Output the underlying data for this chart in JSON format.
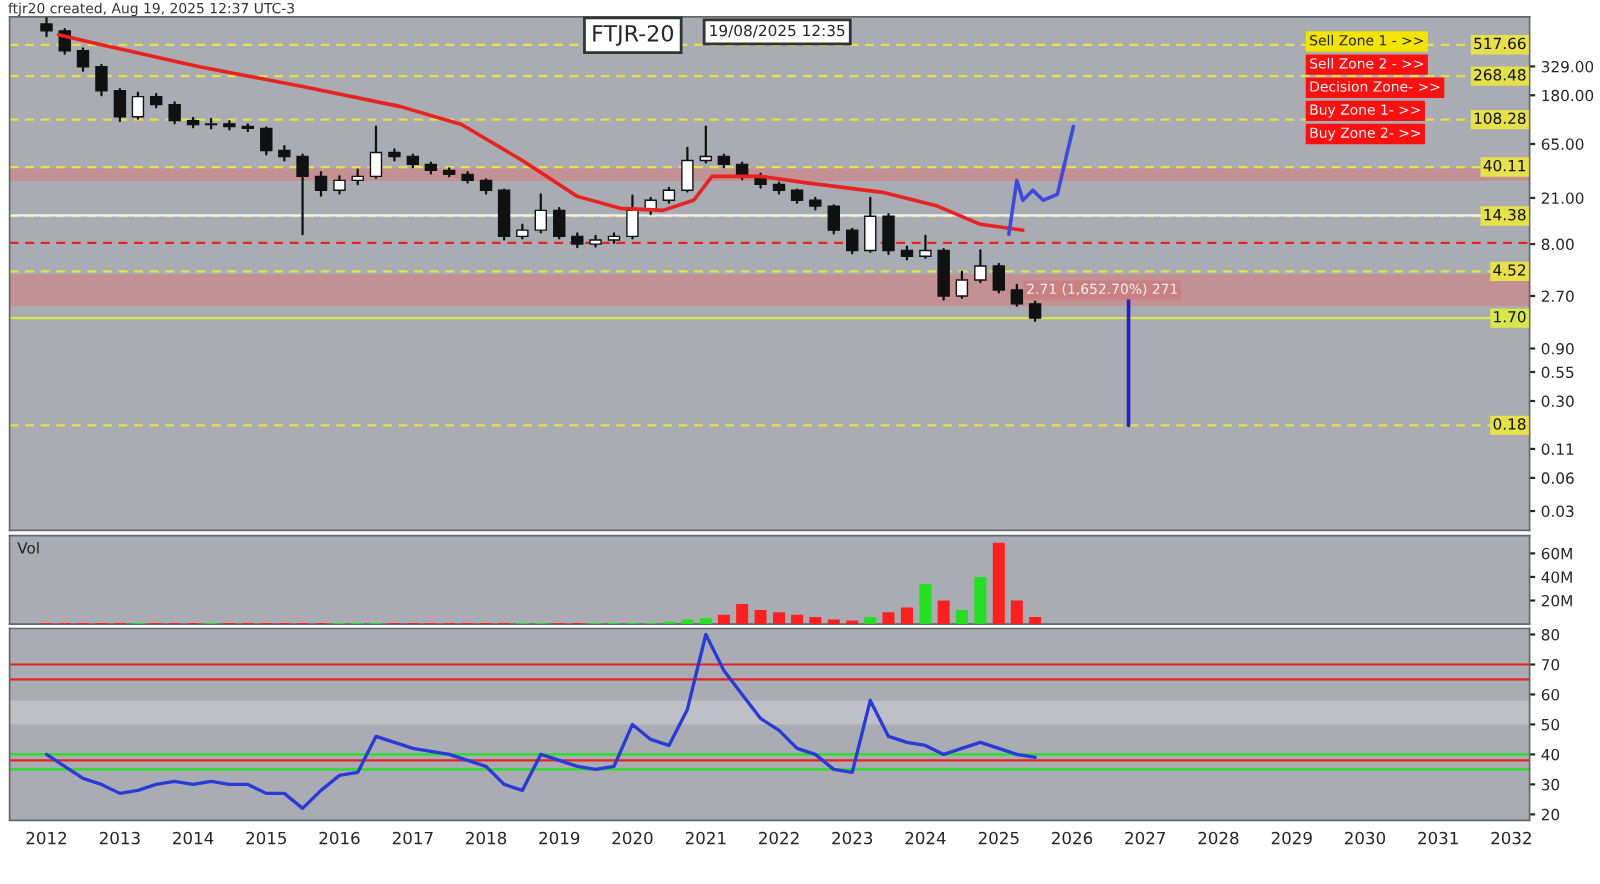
{
  "chart_data": [
    {
      "type": "candlestick",
      "x": [
        "2012-01",
        "2012-04",
        "2012-07",
        "2012-10",
        "2013-01",
        "2013-04",
        "2013-07",
        "2013-10",
        "2014-01",
        "2014-04",
        "2014-07",
        "2014-10",
        "2015-01",
        "2015-04",
        "2015-07",
        "2015-10",
        "2016-01",
        "2016-04",
        "2016-07",
        "2016-10",
        "2017-01",
        "2017-04",
        "2017-07",
        "2017-10",
        "2018-01",
        "2018-04",
        "2018-07",
        "2018-10",
        "2019-01",
        "2019-04",
        "2019-07",
        "2019-10",
        "2020-01",
        "2020-04",
        "2020-07",
        "2020-10",
        "2021-01",
        "2021-04",
        "2021-07",
        "2021-10",
        "2022-01",
        "2022-04",
        "2022-07",
        "2022-10",
        "2023-01",
        "2023-04",
        "2023-07",
        "2023-10",
        "2024-01",
        "2024-04",
        "2024-07",
        "2024-10",
        "2025-01",
        "2025-04",
        "2025-07"
      ],
      "ohlc": [
        [
          800,
          900,
          620,
          693
        ],
        [
          693,
          720,
          430,
          457
        ],
        [
          457,
          480,
          300,
          327
        ],
        [
          327,
          340,
          180,
          198
        ],
        [
          198,
          205,
          105,
          115
        ],
        [
          115,
          190,
          110,
          175
        ],
        [
          175,
          185,
          140,
          148
        ],
        [
          148,
          155,
          100,
          106
        ],
        [
          106,
          112,
          92,
          97.6
        ],
        [
          97.6,
          110,
          90,
          99
        ],
        [
          99,
          105,
          88,
          93.6
        ],
        [
          93.6,
          98,
          85,
          90
        ],
        [
          90,
          92,
          52,
          56.7
        ],
        [
          56.7,
          62,
          46,
          50
        ],
        [
          50,
          52,
          9.8,
          33
        ],
        [
          33,
          36,
          22,
          24.7
        ],
        [
          24.7,
          33,
          23,
          30.3
        ],
        [
          30.3,
          38,
          28,
          33
        ],
        [
          33,
          93.6,
          32,
          54.4
        ],
        [
          54.4,
          58,
          46,
          50
        ],
        [
          50,
          52,
          40,
          42.4
        ],
        [
          42.4,
          44,
          35,
          37.4
        ],
        [
          37.4,
          39,
          33,
          34.4
        ],
        [
          34.4,
          36,
          29,
          30.3
        ],
        [
          30.3,
          31,
          23,
          24.7
        ],
        [
          24.7,
          25,
          8.8,
          9.4
        ],
        [
          9.4,
          12,
          9,
          10.7
        ],
        [
          10.7,
          22.6,
          10.2,
          16.2
        ],
        [
          16.2,
          17,
          9,
          9.4
        ],
        [
          9.4,
          10,
          7.5,
          8
        ],
        [
          8,
          9.5,
          7.6,
          8.7
        ],
        [
          8.7,
          10,
          8.2,
          9.4
        ],
        [
          9.4,
          22,
          9,
          16.2
        ],
        [
          16.2,
          21,
          15,
          20
        ],
        [
          20,
          26,
          19,
          24.7
        ],
        [
          24.7,
          60,
          24,
          46
        ],
        [
          46,
          93.6,
          44,
          50
        ],
        [
          50,
          52,
          40,
          42.4
        ],
        [
          42.4,
          44,
          31,
          33
        ],
        [
          33,
          35,
          26,
          27.9
        ],
        [
          27.9,
          29,
          23,
          24.7
        ],
        [
          24.7,
          25,
          19,
          20
        ],
        [
          20,
          21,
          16.5,
          17.7
        ],
        [
          17.7,
          18,
          10,
          10.7
        ],
        [
          10.7,
          11,
          6.6,
          7
        ],
        [
          7,
          21,
          6.8,
          14.3
        ],
        [
          14.3,
          15,
          6.5,
          7
        ],
        [
          7,
          7.6,
          5.8,
          6.2
        ],
        [
          6.2,
          9.5,
          6,
          7
        ],
        [
          7,
          7.2,
          2.5,
          2.7
        ],
        [
          2.7,
          4.5,
          2.6,
          3.77
        ],
        [
          3.77,
          7,
          3.6,
          5.05
        ],
        [
          5.05,
          5.3,
          2.9,
          3.06
        ],
        [
          3.06,
          3.4,
          2.2,
          2.29
        ],
        [
          2.29,
          2.4,
          1.6,
          1.7
        ]
      ],
      "colors": [
        "#111111",
        "#111111",
        "#111111",
        "#111111",
        "#111111",
        "#ffffff",
        "#111111",
        "#111111",
        "#111111",
        "#ffffff",
        "#111111",
        "#111111",
        "#111111",
        "#111111",
        "#111111",
        "#111111",
        "#ffffff",
        "#ffffff",
        "#ffffff",
        "#111111",
        "#111111",
        "#111111",
        "#111111",
        "#111111",
        "#111111",
        "#111111",
        "#ffffff",
        "#ffffff",
        "#111111",
        "#111111",
        "#ffffff",
        "#ffffff",
        "#ffffff",
        "#ffffff",
        "#ffffff",
        "#ffffff",
        "#ffffff",
        "#111111",
        "#111111",
        "#111111",
        "#111111",
        "#111111",
        "#111111",
        "#111111",
        "#111111",
        "#ffffff",
        "#111111",
        "#111111",
        "#ffffff",
        "#111111",
        "#ffffff",
        "#ffffff",
        "#111111",
        "#111111",
        "#111111"
      ],
      "series": [
        {
          "type": "line",
          "color": "#e8231f",
          "x": [
            "2012-03",
            "2012-10",
            "2014-02",
            "2015-07",
            "2016-11",
            "2017-09",
            "2018-07",
            "2019-04",
            "2019-11",
            "2020-06",
            "2020-11",
            "2021-02",
            "2021-10",
            "2022-05",
            "2023-06",
            "2024-03",
            "2024-10",
            "2025-05"
          ],
          "values": [
            638,
            517,
            327,
            216,
            142,
            97.6,
            46,
            21.7,
            16.9,
            16.2,
            20,
            33,
            33,
            29.1,
            23.6,
            17.7,
            12.1,
            10.7
          ]
        },
        {
          "type": "line",
          "color": "#3f48e0",
          "x": [
            "2025-02-20",
            "2025-04-01",
            "2025-05-01",
            "2025-06-20",
            "2025-08-10",
            "2025-10-20",
            "2026-01-08"
          ],
          "values": [
            9.84,
            30.3,
            20,
            24.7,
            20,
            22.6,
            93.6
          ]
        },
        {
          "type": "line",
          "color": "#2020c8",
          "x": [
            "2026-10-10",
            "2026-10-10"
          ],
          "values": [
            2.7,
            0.18
          ]
        }
      ],
      "log": "y",
      "xlim": [
        "2011-07",
        "2032-04"
      ],
      "ylim": [
        0.02,
        930
      ],
      "yticks": [
        {
          "value": 329,
          "label": "329.00"
        },
        {
          "value": 180,
          "label": "180.00"
        },
        {
          "value": 65,
          "label": "65.00"
        },
        {
          "value": 21,
          "label": "21.00"
        },
        {
          "value": 8,
          "label": "8.00"
        },
        {
          "value": 2.7,
          "label": "2.70"
        },
        {
          "value": 0.9,
          "label": "0.90"
        },
        {
          "value": 0.55,
          "label": "0.55"
        },
        {
          "value": 0.3,
          "label": "0.30"
        },
        {
          "value": 0.11,
          "label": "0.11"
        },
        {
          "value": 0.06,
          "label": "0.06"
        },
        {
          "value": 0.03,
          "label": "0.03"
        }
      ],
      "tick_labels": "y",
      "ref_lines": [
        {
          "axis": "y",
          "value": 517.66,
          "label": "517.66",
          "color": "#e6e04a",
          "line_style": "dashed"
        },
        {
          "axis": "y",
          "value": 268.48,
          "label": "268.48",
          "color": "#e6e04a",
          "line_style": "dashed"
        },
        {
          "axis": "y",
          "value": 108.28,
          "label": "108.28",
          "color": "#e6e04a",
          "line_style": "dashed"
        },
        {
          "axis": "y",
          "value": 40.11,
          "label": "40.11",
          "color": "#e6e04a",
          "line_style": "dashed"
        },
        {
          "axis": "y",
          "value": 14.38,
          "label": "14.38",
          "color": "#e6e04a",
          "line_style": "dashed"
        },
        {
          "axis": "y",
          "value": 4.52,
          "label": "4.52",
          "color": "#e6e04a",
          "line_style": "dashed"
        },
        {
          "axis": "y",
          "value": 0.18,
          "label": "0.18",
          "color": "#e6e04a",
          "line_style": "dashed"
        },
        {
          "axis": "y",
          "value": 14.6,
          "color": "#f2f2f2",
          "line_style": "solid"
        },
        {
          "axis": "y",
          "value": 8.2,
          "color": "#e8231f",
          "line_style": "dashed"
        },
        {
          "axis": "y",
          "value": 1.7,
          "label": "1.70",
          "color": "#d8e84a",
          "line_style": "solid"
        }
      ],
      "bands": [
        {
          "axis": "y",
          "from": 30,
          "to": 39,
          "color": "#d97a7a"
        },
        {
          "axis": "y",
          "from": 2.19,
          "to": 4.27,
          "color": "#d97a7a",
          "label": "2.71 (1,652.70%) 271"
        }
      ],
      "annotations": [
        "ftjr20 created, Aug 19, 2025 12:37 UTC-3",
        "FTJR-20",
        "19/08/2025 12:35",
        "Sell Zone 1 - >>",
        "Sell Zone 2 - >>",
        "Decision Zone- >>",
        "Buy Zone 1- >>",
        "Buy Zone 2- >>"
      ]
    },
    {
      "type": "bar",
      "title": "Vol",
      "x": [
        "2012-01",
        "2012-04",
        "2012-07",
        "2012-10",
        "2013-01",
        "2013-04",
        "2013-07",
        "2013-10",
        "2014-01",
        "2014-04",
        "2014-07",
        "2014-10",
        "2015-01",
        "2015-04",
        "2015-07",
        "2015-10",
        "2016-01",
        "2016-04",
        "2016-07",
        "2016-10",
        "2017-01",
        "2017-04",
        "2017-07",
        "2017-10",
        "2018-01",
        "2018-04",
        "2018-07",
        "2018-10",
        "2019-01",
        "2019-04",
        "2019-07",
        "2019-10",
        "2020-01",
        "2020-04",
        "2020-07",
        "2020-10",
        "2021-01",
        "2021-04",
        "2021-07",
        "2021-10",
        "2022-01",
        "2022-04",
        "2022-07",
        "2022-10",
        "2023-01",
        "2023-04",
        "2023-07",
        "2023-10",
        "2024-01",
        "2024-04",
        "2024-07",
        "2024-10",
        "2025-01",
        "2025-04",
        "2025-07"
      ],
      "values": [
        1,
        1,
        1,
        1,
        1,
        1,
        1,
        1,
        1,
        1,
        1,
        1,
        1,
        1,
        1,
        1,
        1,
        1,
        1,
        1,
        1,
        1,
        1,
        1,
        1,
        1,
        1,
        1,
        1,
        1,
        1,
        1,
        1,
        1,
        2,
        4,
        5,
        8,
        17,
        12,
        10,
        8,
        6,
        4,
        3,
        6,
        10,
        14,
        34,
        20,
        12,
        40,
        69,
        20,
        6
      ],
      "colors": [
        "#ff1f1f",
        "#ff1f1f",
        "#ff1f1f",
        "#ff1f1f",
        "#ff1f1f",
        "#22e022",
        "#ff1f1f",
        "#ff1f1f",
        "#ff1f1f",
        "#22e022",
        "#ff1f1f",
        "#ff1f1f",
        "#ff1f1f",
        "#ff1f1f",
        "#ff1f1f",
        "#ff1f1f",
        "#22e022",
        "#22e022",
        "#22e022",
        "#ff1f1f",
        "#ff1f1f",
        "#ff1f1f",
        "#ff1f1f",
        "#ff1f1f",
        "#ff1f1f",
        "#ff1f1f",
        "#22e022",
        "#22e022",
        "#ff1f1f",
        "#ff1f1f",
        "#22e022",
        "#22e022",
        "#22e022",
        "#22e022",
        "#22e022",
        "#22e022",
        "#22e022",
        "#ff1f1f",
        "#ff1f1f",
        "#ff1f1f",
        "#ff1f1f",
        "#ff1f1f",
        "#ff1f1f",
        "#ff1f1f",
        "#ff1f1f",
        "#22e022",
        "#ff1f1f",
        "#ff1f1f",
        "#22e022",
        "#ff1f1f",
        "#22e022",
        "#22e022",
        "#ff1f1f",
        "#ff1f1f",
        "#ff1f1f"
      ],
      "xlim": [
        "2011-07",
        "2032-04"
      ],
      "ylim": [
        0,
        75
      ],
      "yticks": [
        {
          "value": 20,
          "label": "20M"
        },
        {
          "value": 40,
          "label": "40M"
        },
        {
          "value": 60,
          "label": "60M"
        }
      ],
      "tick_labels": "y"
    },
    {
      "type": "line",
      "x": [
        "2012-01",
        "2012-04",
        "2012-07",
        "2012-10",
        "2013-01",
        "2013-04",
        "2013-07",
        "2013-10",
        "2014-01",
        "2014-04",
        "2014-07",
        "2014-10",
        "2015-01",
        "2015-04",
        "2015-07",
        "2015-10",
        "2016-01",
        "2016-04",
        "2016-07",
        "2016-10",
        "2017-01",
        "2017-04",
        "2017-07",
        "2017-10",
        "2018-01",
        "2018-04",
        "2018-07",
        "2018-10",
        "2019-01",
        "2019-04",
        "2019-07",
        "2019-10",
        "2020-01",
        "2020-04",
        "2020-07",
        "2020-10",
        "2021-01",
        "2021-04",
        "2021-07",
        "2021-10",
        "2022-01",
        "2022-04",
        "2022-07",
        "2022-10",
        "2023-01",
        "2023-04",
        "2023-07",
        "2023-10",
        "2024-01",
        "2024-04",
        "2024-07",
        "2024-10",
        "2025-01",
        "2025-04",
        "2025-07"
      ],
      "series": [
        {
          "color": "#2a3ad8",
          "values": [
            40,
            36,
            32,
            30,
            27,
            28,
            30,
            31,
            30,
            31,
            30,
            30,
            27,
            27,
            22,
            28,
            33,
            34,
            46,
            44,
            42,
            41,
            40,
            38,
            36,
            30,
            28,
            40,
            38,
            36,
            35,
            36,
            50,
            45,
            43,
            55,
            80,
            68,
            60,
            52,
            48,
            42,
            40,
            35,
            34,
            58,
            46,
            44,
            43,
            40,
            42,
            44,
            42,
            40,
            39
          ]
        }
      ],
      "xlim": [
        "2011-07",
        "2032-04"
      ],
      "xticks": [
        {
          "value": "2012-01-01",
          "label": "2012"
        },
        {
          "value": "2013-01-01",
          "label": "2013"
        },
        {
          "value": "2014-01-01",
          "label": "2014"
        },
        {
          "value": "2015-01-01",
          "label": "2015"
        },
        {
          "value": "2016-01-01",
          "label": "2016"
        },
        {
          "value": "2017-01-01",
          "label": "2017"
        },
        {
          "value": "2018-01-01",
          "label": "2018"
        },
        {
          "value": "2019-01-01",
          "label": "2019"
        },
        {
          "value": "2020-01-01",
          "label": "2020"
        },
        {
          "value": "2021-01-01",
          "label": "2021"
        },
        {
          "value": "2022-01-01",
          "label": "2022"
        },
        {
          "value": "2023-01-01",
          "label": "2023"
        },
        {
          "value": "2024-01-01",
          "label": "2024"
        },
        {
          "value": "2025-01-01",
          "label": "2025"
        },
        {
          "value": "2026-01-01",
          "label": "2026"
        },
        {
          "value": "2027-01-01",
          "label": "2027"
        },
        {
          "value": "2028-01-01",
          "label": "2028"
        },
        {
          "value": "2029-01-01",
          "label": "2029"
        },
        {
          "value": "2030-01-01",
          "label": "2030"
        },
        {
          "value": "2031-01-01",
          "label": "2031"
        },
        {
          "value": "2032-01-01",
          "label": "2032"
        }
      ],
      "ylim": [
        18,
        82
      ],
      "yticks": [
        20,
        30,
        40,
        50,
        60,
        70,
        80
      ],
      "ref_lines": [
        {
          "axis": "y",
          "value": 70,
          "color": "#e8231f",
          "line_style": "solid"
        },
        {
          "axis": "y",
          "value": 65,
          "color": "#e8231f",
          "line_style": "solid"
        },
        {
          "axis": "y",
          "value": 38,
          "color": "#e8231f",
          "line_style": "solid"
        },
        {
          "axis": "y",
          "value": 40,
          "color": "#22e022",
          "line_style": "solid"
        },
        {
          "axis": "y",
          "value": 35,
          "color": "#22e022",
          "line_style": "solid"
        }
      ],
      "bands": [
        {
          "axis": "y",
          "from": 50,
          "to": 58,
          "color": "#d0d2d6"
        }
      ]
    }
  ]
}
